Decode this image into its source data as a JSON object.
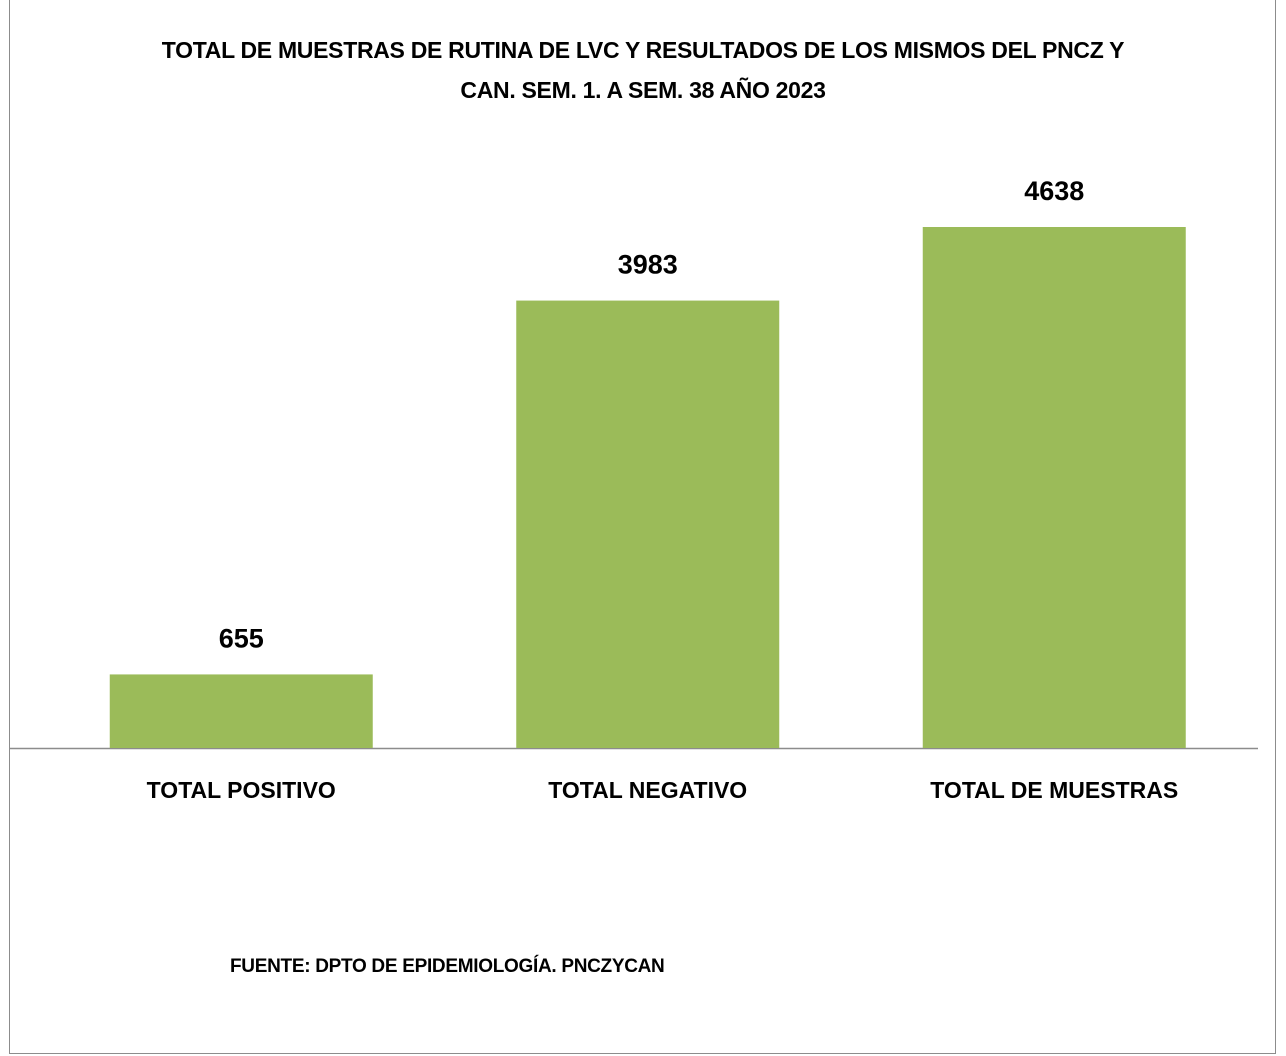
{
  "chart_data": {
    "type": "bar",
    "title": "TOTAL DE MUESTRAS DE RUTINA DE LVC Y RESULTADOS DE LOS MISMOS DEL PNCZ Y CAN. SEM. 1. A SEM. 38 AÑO 2023",
    "categories": [
      "TOTAL POSITIVO",
      "TOTAL NEGATIVO",
      "TOTAL DE MUESTRAS"
    ],
    "values": [
      655,
      3983,
      4638
    ],
    "color": "#9bbb59",
    "note": "FUENTE: DPTO DE EPIDEMIOLOGÍA. PNCZYCAN"
  }
}
